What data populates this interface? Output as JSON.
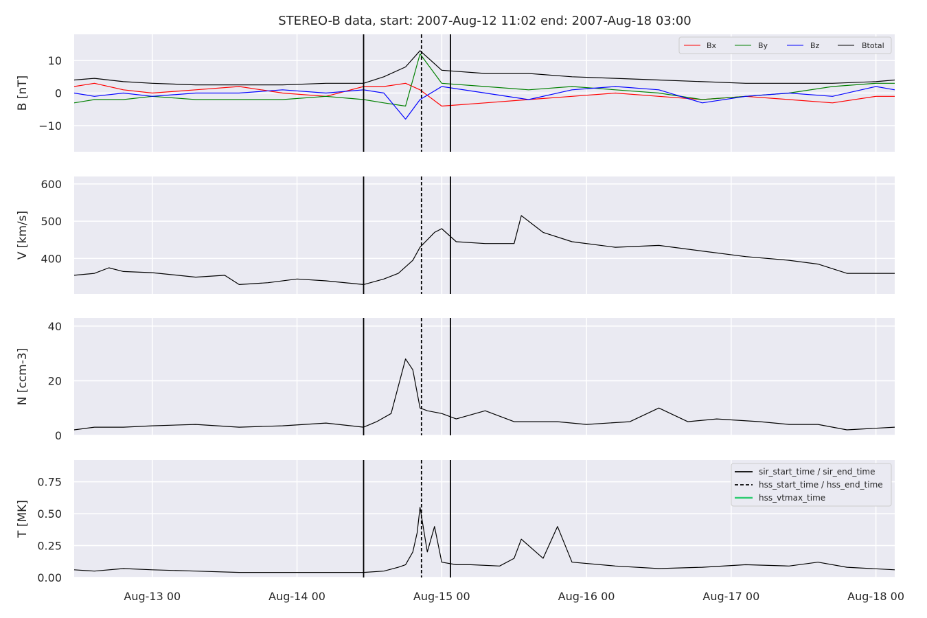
{
  "figure": {
    "title": "STEREO-B data, start: 2007-Aug-12 11:02  end: 2007-Aug-18 03:00"
  },
  "colors": {
    "panel_bg": "#eaeaf2",
    "grid": "#ffffff",
    "text": "#262626",
    "Bx": "#ff0000",
    "By": "#008000",
    "Bz": "#0000ff",
    "Btotal": "#000000",
    "hss_vtmax": "#2ecc71"
  },
  "chart_data": [
    {
      "type": "line",
      "panel": "B",
      "ylabel": "B [nT]",
      "ylim": [
        -18,
        18
      ],
      "yticks": [
        10,
        0,
        -10
      ],
      "ytick_labels": [
        "10",
        "0",
        "−10"
      ],
      "legend_position": "top-right",
      "series": [
        {
          "name": "Bx",
          "x": [
            12.46,
            12.6,
            12.8,
            13.0,
            13.3,
            13.6,
            13.9,
            14.2,
            14.46,
            14.6,
            14.75,
            14.85,
            15.0,
            15.3,
            15.6,
            15.9,
            16.2,
            16.5,
            16.8,
            17.1,
            17.4,
            17.7,
            18.0,
            18.13
          ],
          "y": [
            2,
            3,
            1,
            0,
            1,
            2,
            0,
            -1,
            2,
            2,
            3,
            1,
            -4,
            -3,
            -2,
            -1,
            0,
            -1,
            -2,
            -1,
            -2,
            -3,
            -1,
            -1
          ]
        },
        {
          "name": "By",
          "x": [
            12.46,
            12.6,
            12.8,
            13.0,
            13.3,
            13.6,
            13.9,
            14.2,
            14.46,
            14.6,
            14.75,
            14.85,
            15.0,
            15.3,
            15.6,
            15.9,
            16.2,
            16.5,
            16.8,
            17.1,
            17.4,
            17.7,
            18.0,
            18.13
          ],
          "y": [
            -3,
            -2,
            -2,
            -1,
            -2,
            -2,
            -2,
            -1,
            -2,
            -3,
            -4,
            12,
            3,
            2,
            1,
            2,
            1,
            0,
            -2,
            -1,
            0,
            2,
            3,
            3
          ]
        },
        {
          "name": "Bz",
          "x": [
            12.46,
            12.6,
            12.8,
            13.0,
            13.3,
            13.6,
            13.9,
            14.2,
            14.46,
            14.6,
            14.75,
            14.85,
            15.0,
            15.3,
            15.6,
            15.9,
            16.2,
            16.5,
            16.8,
            17.1,
            17.4,
            17.7,
            18.0,
            18.13
          ],
          "y": [
            0,
            -1,
            0,
            -1,
            0,
            0,
            1,
            0,
            1,
            0,
            -8,
            -2,
            2,
            0,
            -2,
            1,
            2,
            1,
            -3,
            -1,
            0,
            -1,
            2,
            1
          ]
        },
        {
          "name": "Btotal",
          "x": [
            12.46,
            12.6,
            12.8,
            13.0,
            13.3,
            13.6,
            13.9,
            14.2,
            14.46,
            14.6,
            14.75,
            14.85,
            15.0,
            15.3,
            15.6,
            15.9,
            16.2,
            16.5,
            16.8,
            17.1,
            17.4,
            17.7,
            18.0,
            18.13
          ],
          "y": [
            4,
            4.5,
            3.5,
            3,
            2.5,
            2.5,
            2.5,
            3,
            3,
            5,
            8,
            13,
            7,
            6,
            6,
            5,
            4.5,
            4,
            3.5,
            3,
            3,
            3,
            3.5,
            4
          ]
        }
      ]
    },
    {
      "type": "line",
      "panel": "V",
      "ylabel": "V [km/s]",
      "ylim": [
        305,
        620
      ],
      "yticks": [
        600,
        500,
        400
      ],
      "ytick_labels": [
        "600",
        "500",
        "400"
      ],
      "series": [
        {
          "name": "V",
          "x": [
            12.46,
            12.6,
            12.7,
            12.8,
            13.0,
            13.3,
            13.5,
            13.6,
            13.8,
            14.0,
            14.2,
            14.46,
            14.6,
            14.7,
            14.8,
            14.85,
            14.95,
            15.0,
            15.1,
            15.3,
            15.5,
            15.55,
            15.7,
            15.9,
            16.2,
            16.5,
            16.8,
            17.1,
            17.4,
            17.6,
            17.8,
            18.13
          ],
          "y": [
            355,
            360,
            375,
            365,
            362,
            350,
            355,
            330,
            335,
            345,
            340,
            330,
            345,
            360,
            395,
            430,
            470,
            480,
            445,
            440,
            440,
            515,
            470,
            445,
            430,
            435,
            420,
            405,
            395,
            385,
            360,
            360
          ]
        }
      ]
    },
    {
      "type": "line",
      "panel": "N",
      "ylabel": "N [ccm-3]",
      "ylim": [
        0,
        43
      ],
      "yticks": [
        40,
        20,
        0
      ],
      "ytick_labels": [
        "40",
        "20",
        "0"
      ],
      "series": [
        {
          "name": "N",
          "x": [
            12.46,
            12.6,
            12.8,
            13.0,
            13.3,
            13.6,
            13.9,
            14.2,
            14.46,
            14.55,
            14.65,
            14.7,
            14.75,
            14.8,
            14.85,
            14.9,
            15.0,
            15.1,
            15.3,
            15.5,
            15.8,
            16.0,
            16.3,
            16.5,
            16.7,
            16.9,
            17.2,
            17.4,
            17.6,
            17.8,
            18.13
          ],
          "y": [
            2,
            3,
            3,
            3.5,
            4,
            3,
            3.5,
            4.5,
            3,
            5,
            8,
            18,
            28,
            24,
            10,
            9,
            8,
            6,
            9,
            5,
            5,
            4,
            5,
            10,
            5,
            6,
            5,
            4,
            4,
            2,
            3
          ]
        }
      ]
    },
    {
      "type": "line",
      "panel": "T",
      "ylabel": "T [MK]",
      "ylim": [
        0,
        0.92
      ],
      "yticks": [
        0.75,
        0.5,
        0.25,
        0.0
      ],
      "ytick_labels": [
        "0.75",
        "0.50",
        "0.25",
        "0.00"
      ],
      "legend_position": "top-right",
      "series": [
        {
          "name": "T",
          "x": [
            12.46,
            12.6,
            12.8,
            13.0,
            13.3,
            13.6,
            13.9,
            14.2,
            14.46,
            14.6,
            14.7,
            14.75,
            14.8,
            14.83,
            14.85,
            14.9,
            14.95,
            15.0,
            15.1,
            15.2,
            15.4,
            15.5,
            15.55,
            15.7,
            15.8,
            15.9,
            16.2,
            16.5,
            16.8,
            17.1,
            17.4,
            17.6,
            17.8,
            18.13
          ],
          "y": [
            0.06,
            0.05,
            0.07,
            0.06,
            0.05,
            0.04,
            0.04,
            0.04,
            0.04,
            0.05,
            0.08,
            0.1,
            0.2,
            0.35,
            0.55,
            0.2,
            0.4,
            0.12,
            0.1,
            0.1,
            0.09,
            0.15,
            0.3,
            0.15,
            0.4,
            0.12,
            0.09,
            0.07,
            0.08,
            0.1,
            0.09,
            0.12,
            0.08,
            0.06
          ]
        }
      ],
      "legend": [
        {
          "label": "sir_start_time / sir_end_time",
          "style": "solid"
        },
        {
          "label": "hss_start_time / hss_end_time",
          "style": "dashed"
        },
        {
          "label": "hss_vtmax_time",
          "style": "green"
        }
      ]
    }
  ],
  "x_axis": {
    "range": [
      12.46,
      18.13
    ],
    "ticks": [
      13,
      14,
      15,
      16,
      17,
      18
    ],
    "tick_labels": [
      "Aug-13 00",
      "Aug-14 00",
      "Aug-15 00",
      "Aug-16 00",
      "Aug-17 00",
      "Aug-18 00"
    ]
  },
  "event_lines": {
    "sir_start": 14.46,
    "hss_start": 14.86,
    "sir_end": 15.06
  }
}
